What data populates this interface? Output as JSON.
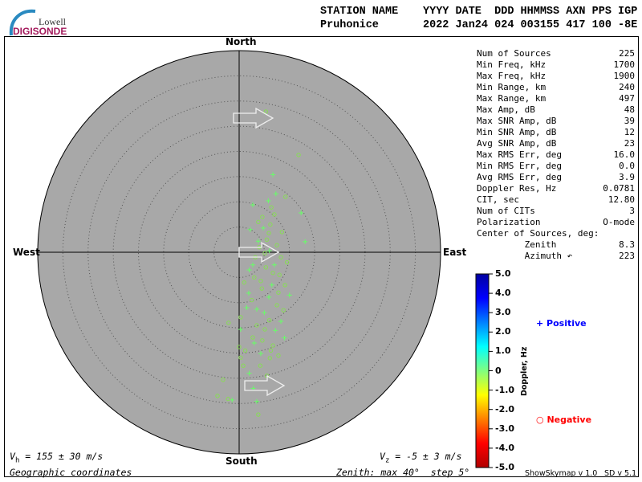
{
  "header": {
    "logo_top": "Lowell",
    "logo_bottom": "DIGISONDE",
    "line1_left": "STATION NAME",
    "line1_right": "YYYY DATE  DDD HHMMSS AXN PPS IGP",
    "line2_left": "Pruhonice",
    "line2_right": "2022 Jan24 024 003155 417 100 -8E"
  },
  "stats": [
    {
      "label": "Num of Sources",
      "value": "225"
    },
    {
      "label": "Min Freq, kHz",
      "value": "1700"
    },
    {
      "label": "Max Freq, kHz",
      "value": "1900"
    },
    {
      "label": "Min Range, km",
      "value": "240"
    },
    {
      "label": "Max Range, km",
      "value": "497"
    },
    {
      "label": "Max Amp, dB",
      "value": "48"
    },
    {
      "label": "Max SNR Amp, dB",
      "value": "39"
    },
    {
      "label": "Min SNR Amp, dB",
      "value": "12"
    },
    {
      "label": "Avg SNR Amp, dB",
      "value": "23"
    },
    {
      "label": "Max RMS Err, deg",
      "value": "16.0"
    },
    {
      "label": "Min RMS Err, deg",
      "value": "0.0"
    },
    {
      "label": "Avg RMS Err, deg",
      "value": "3.9"
    },
    {
      "label": "Doppler Res, Hz",
      "value": "0.0781"
    },
    {
      "label": "CIT, sec",
      "value": "12.80"
    },
    {
      "label": "Num of CITs",
      "value": "3"
    },
    {
      "label": "Polarization",
      "value": "O-mode"
    },
    {
      "label": "Center of Sources, deg:",
      "value": ""
    },
    {
      "label": "         Zenith",
      "value": "8.3"
    },
    {
      "label": "         Azimuth ↶",
      "value": "223"
    }
  ],
  "directions": {
    "north": "North",
    "south": "South",
    "east": "East",
    "west": "West"
  },
  "footer": {
    "vh": "= 155 ± 30 m/s",
    "vh_sym": "V",
    "vh_sub": "h",
    "vz": "= -5 ± 3 m/s",
    "vz_sym": "V",
    "vz_sub": "z",
    "coords": "Geographic coordinates",
    "zenith": "Zenith: max 40°  step 5°",
    "version1": "ShowSkymap v 1.0",
    "version2": "SD v 5.1"
  },
  "colorbar": {
    "label": "Doppler, Hz",
    "ticks": [
      "5.0",
      "4.0",
      "3.0",
      "2.0",
      "1.0",
      "0",
      "-1.0",
      "-2.0",
      "-3.0",
      "-4.0",
      "-5.0"
    ],
    "colors": [
      "#0000a0",
      "#0000ff",
      "#0080ff",
      "#00ffff",
      "#80ff80",
      "#ffff00",
      "#ff8000",
      "#ff0000",
      "#b00000"
    ]
  },
  "legend": {
    "positive": "Positive",
    "negative": "Negative",
    "positive_color": "#0000ff",
    "negative_color": "#ff0000"
  },
  "chart_data": {
    "type": "scatter",
    "zenith_max": 40,
    "zenith_step": 5,
    "background": "#a8a8a8",
    "point_color": "#66ff66",
    "points": [
      [
        5.3,
        27.9,
        "o"
      ],
      [
        11.8,
        19.3,
        "o"
      ],
      [
        6.7,
        15.4,
        "+"
      ],
      [
        7.3,
        11.6,
        "+"
      ],
      [
        2.7,
        9.4,
        "+"
      ],
      [
        9.2,
        11.0,
        "o"
      ],
      [
        12.3,
        7.8,
        "+"
      ],
      [
        13.1,
        2.1,
        "+"
      ],
      [
        6.4,
        8.9,
        "o"
      ],
      [
        4.6,
        7.0,
        "o"
      ],
      [
        5.9,
        3.8,
        "o"
      ],
      [
        3.8,
        2.2,
        "+"
      ],
      [
        7.5,
        1.4,
        "o"
      ],
      [
        5.1,
        -0.2,
        "o"
      ],
      [
        2.7,
        -2.5,
        "+"
      ],
      [
        8.3,
        -1.0,
        "o"
      ],
      [
        6.7,
        -4.1,
        "o"
      ],
      [
        4.3,
        -5.7,
        "o"
      ],
      [
        9.1,
        -6.5,
        "o"
      ],
      [
        1.9,
        -8.1,
        "+"
      ],
      [
        5.9,
        -8.9,
        "+"
      ],
      [
        7.5,
        -10.5,
        "o"
      ],
      [
        3.5,
        -11.3,
        "+"
      ],
      [
        0.3,
        -12.9,
        "o"
      ],
      [
        8.3,
        -13.7,
        "+"
      ],
      [
        5.1,
        -15.3,
        "o"
      ],
      [
        2.7,
        -16.9,
        "o"
      ],
      [
        6.7,
        -18.5,
        "o"
      ],
      [
        0,
        -18.8,
        "o"
      ],
      [
        4.3,
        -20.1,
        "+"
      ],
      [
        -2.1,
        -14.0,
        "o"
      ],
      [
        0.3,
        -15.3,
        "+"
      ],
      [
        -3.2,
        -25.3,
        "o"
      ],
      [
        -2.2,
        -29.1,
        "o"
      ],
      [
        -4.3,
        -28.5,
        "o"
      ],
      [
        3.8,
        -32.2,
        "o"
      ],
      [
        -1.4,
        -29.3,
        "+"
      ],
      [
        3.5,
        -29.6,
        "+"
      ],
      [
        0.3,
        -20.9,
        "o"
      ],
      [
        6.1,
        -21.0,
        "o"
      ],
      [
        4.8,
        4.8,
        "+"
      ],
      [
        5.5,
        2.5,
        "o"
      ],
      [
        6.2,
        5.5,
        "o"
      ],
      [
        4.0,
        1.0,
        "o"
      ],
      [
        6.0,
        0.3,
        "+"
      ],
      [
        3.2,
        -1.0,
        "o"
      ],
      [
        7.0,
        -2.5,
        "+"
      ],
      [
        5.3,
        -3.0,
        "o"
      ],
      [
        8.0,
        -4.5,
        "o"
      ],
      [
        4.5,
        -7.2,
        "o"
      ],
      [
        6.5,
        -6.5,
        "+"
      ],
      [
        3.0,
        -5.0,
        "o"
      ],
      [
        2.5,
        -9.5,
        "o"
      ],
      [
        7.8,
        -8.0,
        "o"
      ],
      [
        5.0,
        -12.0,
        "+"
      ],
      [
        6.0,
        -13.5,
        "o"
      ],
      [
        3.5,
        -14.5,
        "o"
      ],
      [
        7.2,
        -15.5,
        "+"
      ],
      [
        4.6,
        -17.5,
        "o"
      ],
      [
        1.5,
        -11.0,
        "+"
      ],
      [
        2.0,
        -3.5,
        "+"
      ],
      [
        9.5,
        -2.0,
        "o"
      ],
      [
        10.0,
        -8.5,
        "+"
      ],
      [
        8.8,
        -11.5,
        "o"
      ],
      [
        1.0,
        -6.0,
        "o"
      ],
      [
        3.8,
        6.0,
        "o"
      ],
      [
        5.8,
        10.2,
        "+"
      ],
      [
        7.0,
        7.5,
        "o"
      ],
      [
        8.5,
        4.0,
        "o"
      ],
      [
        2.2,
        4.5,
        "+"
      ],
      [
        4.2,
        -22.5,
        "o"
      ],
      [
        2.0,
        -24.0,
        "+"
      ],
      [
        5.5,
        -24.5,
        "o"
      ],
      [
        1.2,
        -19.5,
        "o"
      ],
      [
        9.0,
        -17.0,
        "+"
      ],
      [
        3.0,
        -18.0,
        "+"
      ],
      [
        6.3,
        -19.5,
        "o"
      ],
      [
        7.8,
        -20.5,
        "o"
      ],
      [
        0.8,
        -22.5,
        "o"
      ],
      [
        2.8,
        -27.0,
        "+"
      ]
    ]
  }
}
